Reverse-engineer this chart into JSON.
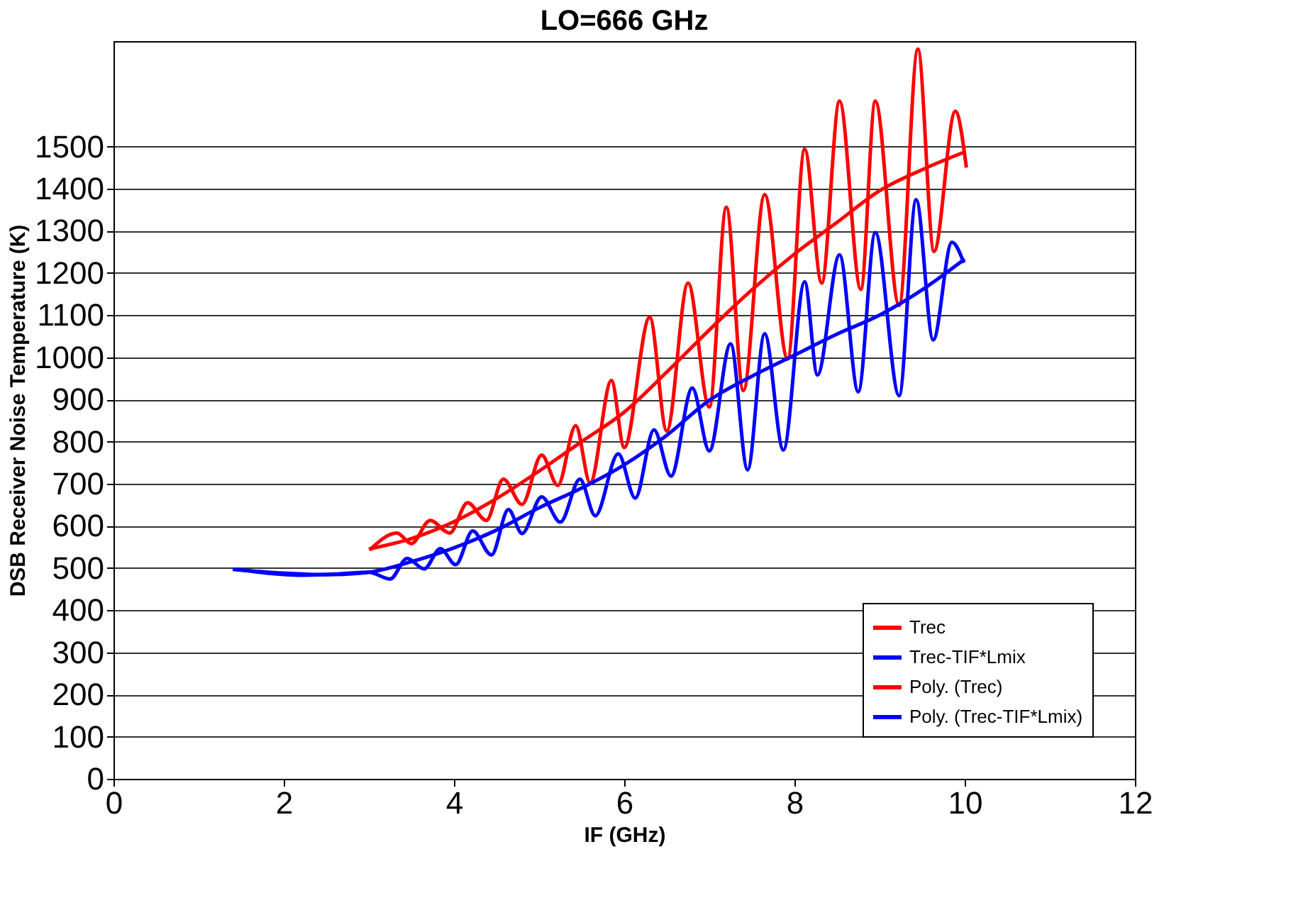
{
  "chart_data": {
    "type": "line",
    "title": "LO=666 GHz",
    "xlabel": "IF (GHz)",
    "ylabel": "DSB Receiver Noise Temperature (K)",
    "xlim": [
      0,
      12
    ],
    "xticks": [
      0,
      2,
      4,
      6,
      8,
      10,
      12
    ],
    "ylim": [
      0,
      1750
    ],
    "yticks": [
      0,
      100,
      200,
      300,
      400,
      500,
      600,
      700,
      800,
      900,
      1000,
      1100,
      1200,
      1300,
      1400,
      1500
    ],
    "grid": "y",
    "legend": "bottom right",
    "line_style": "solid",
    "marker": "none",
    "series": [
      {
        "name": "Trec",
        "color": "#ff0000",
        "x": [
          3.01,
          3.33,
          3.5,
          3.72,
          3.95,
          4.16,
          4.38,
          4.58,
          4.8,
          5.03,
          5.22,
          5.43,
          5.6,
          5.85,
          6.0,
          6.3,
          6.5,
          6.75,
          7.0,
          7.2,
          7.4,
          7.65,
          7.92,
          8.12,
          8.32,
          8.53,
          8.78,
          8.95,
          9.23,
          9.45,
          9.64,
          9.89,
          10.02
        ],
        "values": [
          543,
          583,
          558,
          613,
          583,
          655,
          613,
          711,
          651,
          768,
          696,
          838,
          702,
          945,
          786,
          1095,
          825,
          1176,
          882,
          1356,
          921,
          1386,
          996,
          1494,
          1176,
          1608,
          1161,
          1608,
          1123,
          1731,
          1251,
          1584,
          1450
        ]
      },
      {
        "name": "Trec-TIF*Lmix",
        "color": "#0000ff",
        "x": [
          1.43,
          1.8,
          2.2,
          2.6,
          3.0,
          3.25,
          3.45,
          3.65,
          3.84,
          4.02,
          4.22,
          4.44,
          4.64,
          4.8,
          5.03,
          5.25,
          5.48,
          5.66,
          5.93,
          6.13,
          6.35,
          6.55,
          6.8,
          7.0,
          7.25,
          7.45,
          7.65,
          7.87,
          8.12,
          8.27,
          8.53,
          8.75,
          8.95,
          9.23,
          9.43,
          9.63,
          9.85,
          9.99
        ],
        "values": [
          497,
          488,
          483,
          486,
          490,
          474,
          523,
          498,
          546,
          508,
          588,
          531,
          639,
          582,
          669,
          609,
          711,
          624,
          771,
          666,
          828,
          718,
          927,
          778,
          1032,
          733,
          1056,
          780,
          1179,
          958,
          1243,
          918,
          1296,
          909,
          1374,
          1041,
          1273,
          1224
        ]
      },
      {
        "name": "Poly. (Trec)",
        "color": "#ff0000",
        "x": [
          3,
          3.5,
          4,
          4.5,
          5,
          5.5,
          6,
          6.5,
          7,
          7.5,
          8,
          8.5,
          9,
          9.5,
          10
        ],
        "values": [
          545,
          570,
          610,
          665,
          730,
          800,
          870,
          965,
          1065,
          1160,
          1245,
          1320,
          1395,
          1445,
          1487
        ]
      },
      {
        "name": "Poly. (Trec-TIF*Lmix)",
        "color": "#0000ff",
        "x": [
          1.4,
          2,
          2.5,
          3,
          3.5,
          4,
          4.5,
          5,
          5.5,
          6,
          6.5,
          7,
          7.5,
          8,
          8.5,
          9,
          9.5,
          10
        ],
        "values": [
          497,
          488,
          484,
          490,
          515,
          548,
          590,
          643,
          690,
          745,
          815,
          898,
          955,
          1005,
          1055,
          1100,
          1160,
          1233
        ]
      }
    ]
  }
}
